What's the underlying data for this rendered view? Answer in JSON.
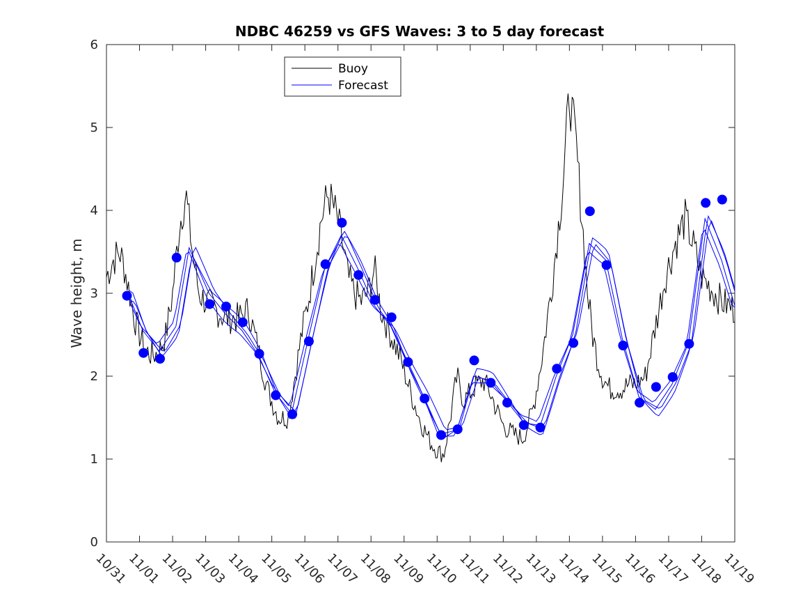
{
  "chart_data": {
    "type": "line",
    "title": "NDBC 46259 vs GFS Waves: 3 to 5 day forecast",
    "xlabel": "",
    "ylabel": "Wave height, m",
    "xlim": [
      0,
      19
    ],
    "ylim": [
      0,
      6
    ],
    "x_tick_labels": [
      "10/31",
      "11/01",
      "11/02",
      "11/03",
      "11/04",
      "11/05",
      "11/06",
      "11/07",
      "11/08",
      "11/09",
      "11/10",
      "11/11",
      "11/12",
      "11/13",
      "11/14",
      "11/15",
      "11/16",
      "11/17",
      "11/18",
      "11/19"
    ],
    "y_ticks": [
      0,
      1,
      2,
      3,
      4,
      5,
      6
    ],
    "legend": {
      "location": "top-center-left",
      "entries": [
        {
          "label": "Buoy",
          "color": "#000000"
        },
        {
          "label": "Forecast",
          "color": "#0000ff"
        }
      ]
    },
    "colors": {
      "buoy": "#000000",
      "forecast": "#0000ff",
      "marker": "#0000ff"
    },
    "series": [
      {
        "name": "Buoy",
        "x": [
          0,
          0.2,
          0.4,
          0.55,
          0.7,
          0.85,
          1.0,
          1.2,
          1.4,
          1.6,
          1.8,
          2.0,
          2.2,
          2.4,
          2.6,
          2.8,
          3.0,
          3.3,
          3.6,
          4.0,
          4.3,
          4.6,
          4.9,
          5.2,
          5.5,
          5.7,
          5.9,
          6.1,
          6.3,
          6.5,
          6.7,
          6.9,
          7.1,
          7.3,
          7.5,
          7.7,
          7.9,
          8.1,
          8.3,
          8.6,
          8.9,
          9.2,
          9.5,
          9.8,
          10.0,
          10.2,
          10.4,
          10.6,
          10.8,
          11.0,
          11.2,
          11.4,
          11.6,
          11.8,
          12.0,
          12.3,
          12.6,
          12.9,
          13.2,
          13.5,
          13.8,
          14.0,
          14.2,
          14.4,
          14.55,
          14.7,
          14.85,
          15.0,
          15.2,
          15.4,
          15.6,
          15.8,
          16.0,
          16.3,
          16.6,
          16.9,
          17.2,
          17.5,
          17.8,
          18.0,
          18.2,
          18.4,
          18.6,
          18.8,
          19.0
        ],
        "y": [
          3.2,
          3.4,
          3.5,
          3.3,
          3.0,
          2.7,
          2.5,
          2.3,
          2.25,
          2.3,
          2.5,
          3.0,
          3.8,
          4.2,
          3.5,
          3.0,
          2.9,
          2.8,
          2.7,
          2.7,
          2.8,
          2.3,
          1.8,
          1.5,
          1.5,
          2.0,
          2.5,
          2.9,
          3.4,
          3.9,
          4.2,
          4.0,
          3.7,
          3.2,
          3.0,
          2.9,
          3.0,
          3.3,
          2.8,
          2.5,
          2.2,
          1.8,
          1.45,
          1.2,
          1.1,
          1.05,
          1.5,
          2.0,
          1.7,
          1.8,
          1.9,
          1.95,
          1.8,
          1.6,
          1.4,
          1.3,
          1.25,
          1.6,
          2.3,
          3.2,
          4.3,
          5.4,
          4.8,
          3.8,
          3.0,
          2.5,
          2.2,
          2.0,
          1.85,
          1.85,
          1.85,
          1.9,
          1.9,
          2.0,
          2.6,
          3.2,
          3.6,
          3.9,
          3.5,
          3.2,
          3.1,
          3.0,
          2.9,
          2.85,
          2.8
        ]
      },
      {
        "name": "Forecast",
        "x": [
          0.7,
          1.1,
          1.6,
          2.1,
          2.5,
          3.1,
          3.6,
          4.1,
          4.6,
          5.1,
          5.6,
          6.1,
          6.6,
          7.1,
          7.6,
          8.1,
          8.6,
          9.1,
          9.6,
          10.1,
          10.6,
          11.1,
          11.6,
          12.1,
          12.6,
          13.1,
          13.6,
          14.1,
          14.6,
          15.1,
          15.6,
          16.1,
          16.6,
          17.1,
          17.6,
          18.1,
          18.6,
          19.0
        ],
        "y": [
          2.95,
          2.55,
          2.3,
          2.6,
          3.55,
          3.0,
          2.75,
          2.55,
          2.25,
          1.8,
          1.55,
          2.45,
          3.3,
          3.7,
          3.3,
          2.85,
          2.6,
          2.15,
          1.75,
          1.3,
          1.35,
          2.0,
          1.95,
          1.7,
          1.45,
          1.38,
          2.0,
          2.5,
          3.6,
          3.4,
          2.45,
          1.75,
          1.6,
          1.9,
          2.4,
          3.9,
          3.4,
          2.85
        ]
      }
    ],
    "markers": {
      "name": "Forecast verification points",
      "x": [
        0.62,
        1.12,
        1.62,
        2.12,
        3.12,
        3.62,
        4.12,
        4.62,
        5.12,
        5.62,
        6.12,
        6.62,
        7.12,
        7.62,
        8.12,
        8.62,
        9.12,
        9.62,
        10.12,
        10.62,
        11.12,
        11.62,
        12.12,
        12.62,
        13.12,
        13.62,
        14.12,
        14.62,
        15.12,
        15.62,
        16.12,
        16.62,
        17.12,
        17.62,
        18.12,
        18.62
      ],
      "y": [
        2.97,
        2.28,
        2.21,
        3.43,
        2.87,
        2.84,
        2.65,
        2.27,
        1.77,
        1.54,
        2.42,
        3.35,
        3.85,
        3.22,
        2.92,
        2.71,
        2.17,
        1.73,
        1.29,
        1.36,
        2.19,
        1.92,
        1.68,
        1.41,
        1.38,
        2.09,
        2.4,
        3.99,
        3.34,
        2.37,
        1.68,
        1.87,
        1.99,
        2.39,
        4.09,
        4.13
      ]
    }
  }
}
